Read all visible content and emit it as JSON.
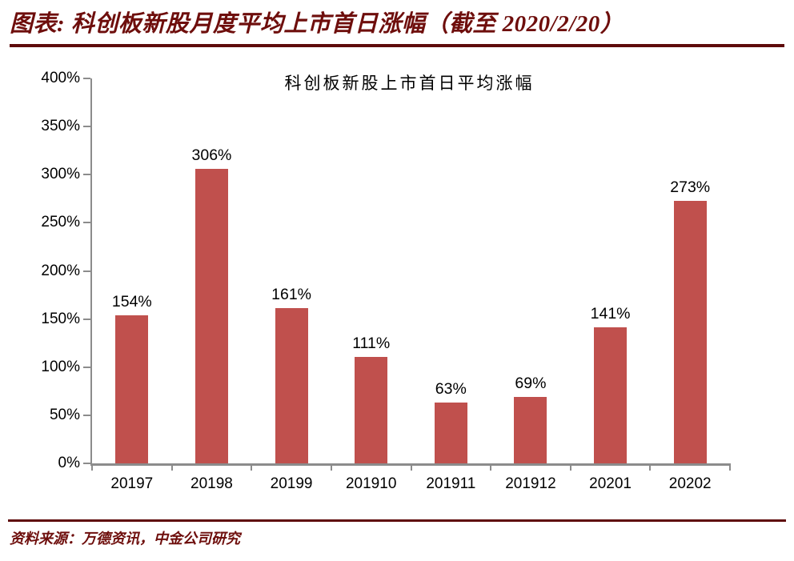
{
  "header": {
    "title": "图表:  科创板新股月度平均上市首日涨幅（截至 2020/2/20）"
  },
  "chart_data": {
    "type": "bar",
    "title": "科创板新股上市首日平均涨幅",
    "categories": [
      "20197",
      "20198",
      "20199",
      "201910",
      "201911",
      "201912",
      "20201",
      "20202"
    ],
    "values": [
      154,
      306,
      161,
      111,
      63,
      69,
      141,
      273
    ],
    "value_labels": [
      "154%",
      "306%",
      "161%",
      "111%",
      "63%",
      "69%",
      "141%",
      "273%"
    ],
    "xlabel": "",
    "ylabel": "",
    "ylim": [
      0,
      400
    ],
    "ytick_step": 50,
    "yticks": [
      "0%",
      "50%",
      "100%",
      "150%",
      "200%",
      "250%",
      "300%",
      "350%",
      "400%"
    ],
    "grid": false,
    "legend": false,
    "bar_color": "#C0504D",
    "axis_color": "#8C8C8C"
  },
  "footer": {
    "source_text": "资料来源：万德资讯，中金公司研究"
  },
  "colors": {
    "accent_maroon": "#6E0E0C",
    "rule_maroon": "#5E0A0A",
    "bar_red": "#C0504D",
    "axis_gray": "#8C8C8C",
    "text_black": "#000000"
  }
}
